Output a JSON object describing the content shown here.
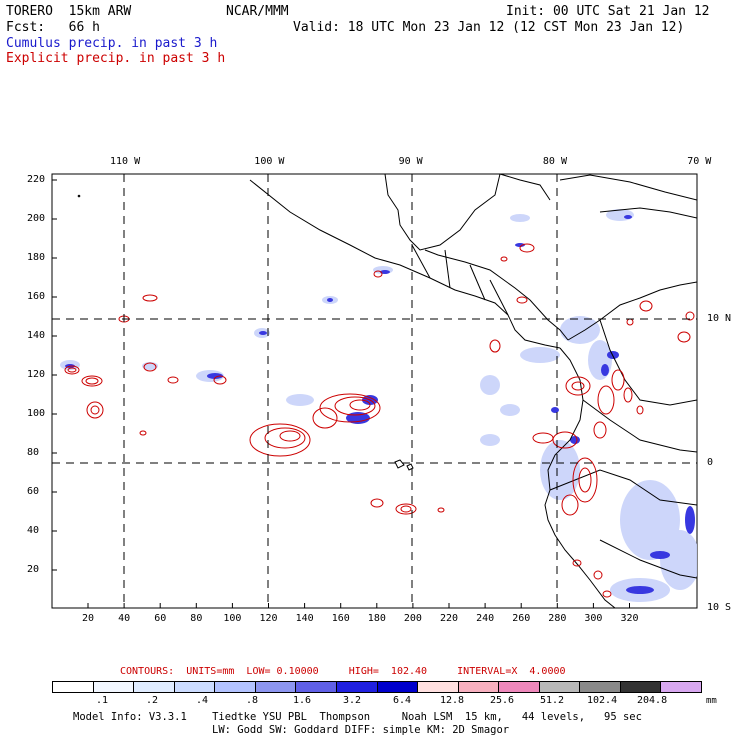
{
  "header": {
    "model": "TORERO  15km ARW",
    "center": "NCAR/MMM",
    "init": "Init: 00 UTC Sat 21 Jan 12",
    "fcst": "Fcst:   66 h",
    "valid": "Valid: 18 UTC Mon 23 Jan 12 (12 CST Mon 23 Jan 12)",
    "cumulus_label": "Cumulus precip. in past 3 h",
    "explicit_label": "Explicit precip. in past 3 h"
  },
  "colors": {
    "cumulus": "#1a1acc",
    "explicit": "#cc0000",
    "coast": "#000000"
  },
  "map": {
    "lon_labels": [
      {
        "text": "110 W",
        "lon": -110
      },
      {
        "text": "100 W",
        "lon": -100
      },
      {
        "text": "90 W",
        "lon": -90
      },
      {
        "text": "80 W",
        "lon": -80
      },
      {
        "text": "70 W",
        "lon": -70
      }
    ],
    "lat_labels": [
      {
        "text": "10 N",
        "lat": 10
      },
      {
        "text": "0",
        "lat": 0
      },
      {
        "text": "10 S",
        "lat": -10
      }
    ],
    "y_ticks": [
      "220",
      "200",
      "180",
      "160",
      "140",
      "120",
      "100",
      "80",
      "60",
      "40",
      "20"
    ],
    "x_ticks": [
      "20",
      "40",
      "60",
      "80",
      "100",
      "120",
      "140",
      "160",
      "180",
      "200",
      "220",
      "240",
      "260",
      "280",
      "300",
      "320"
    ]
  },
  "contours_info": {
    "text": "CONTOURS:  UNITS=mm  LOW= 0.10000     HIGH=  102.40     INTERVAL=X  4.0000"
  },
  "colorbar": {
    "colors": [
      "#ffffff",
      "#f2f7ff",
      "#e0ecff",
      "#ccdcff",
      "#b3c3ff",
      "#8d96f0",
      "#6060e6",
      "#2020e0",
      "#0000cc",
      "#ffe0e0",
      "#f7b0bf",
      "#ee88bb",
      "#b8b8b8",
      "#8a8a8a",
      "#333333",
      "#d8a8f0"
    ],
    "labels": [
      ".1",
      ".2",
      ".4",
      ".8",
      "1.6",
      "3.2",
      "6.4",
      "12.8",
      "25.6",
      "51.2",
      "102.4",
      "204.8"
    ],
    "units": "mm"
  },
  "footer": {
    "line1": "Model Info: V3.3.1    Tiedtke YSU PBL  Thompson     Noah LSM  15 km,   44 levels,   95 sec",
    "line2": "LW: Godd SW: Goddard DIFF: simple KM: 2D Smagor"
  }
}
